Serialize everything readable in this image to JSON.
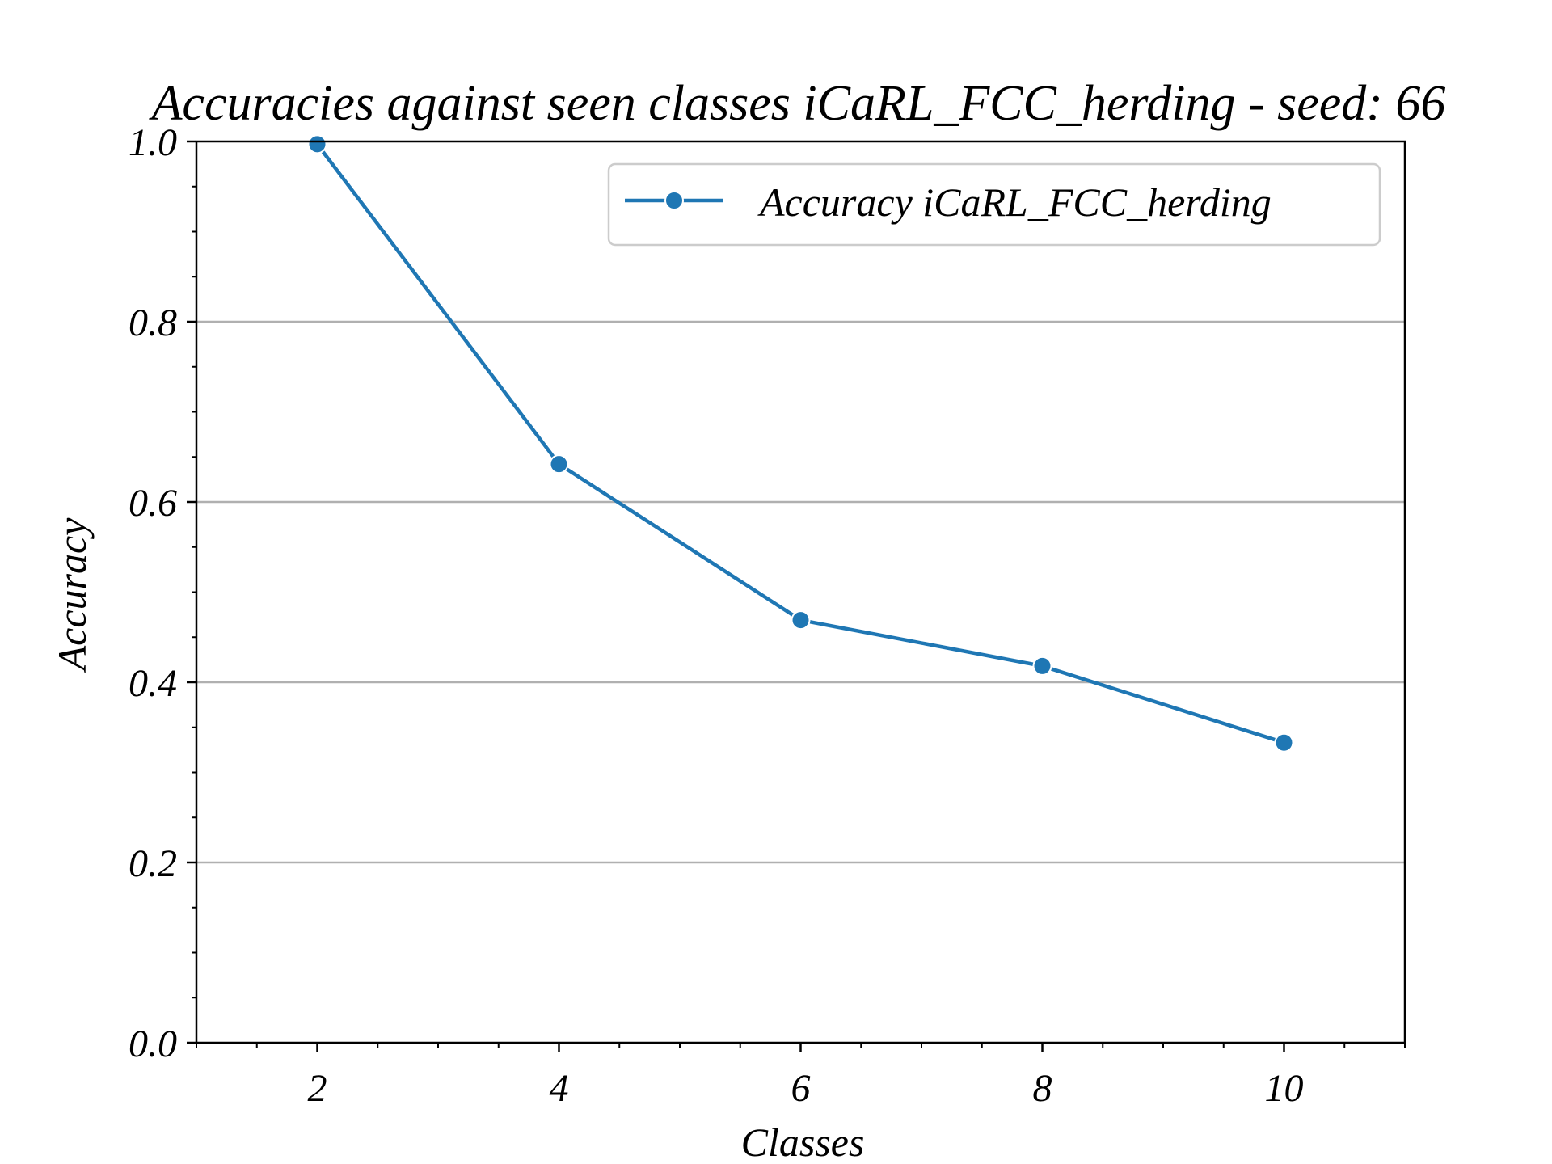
{
  "chart_data": {
    "type": "line",
    "title": "Accuracies against seen classes iCaRL_FCC_herding - seed: 66",
    "xlabel": "Classes",
    "ylabel": "Accuracy",
    "xlim": [
      1,
      11
    ],
    "ylim": [
      0.0,
      1.0
    ],
    "x_ticks": [
      2,
      4,
      6,
      8,
      10
    ],
    "x_tick_labels": [
      "2",
      "4",
      "6",
      "8",
      "10"
    ],
    "x_minor_step": 0.5,
    "y_ticks": [
      0.0,
      0.2,
      0.4,
      0.6,
      0.8,
      1.0
    ],
    "y_tick_labels": [
      "0.0",
      "0.2",
      "0.4",
      "0.6",
      "0.8",
      "1.0"
    ],
    "y_minor_step": 0.05,
    "grid": "horizontal",
    "legend_position": "top-right",
    "colors": {
      "series": "#1f77b4",
      "grid": "#b0b0b0",
      "axes": "#000000"
    },
    "series": [
      {
        "name": "Accuracy iCaRL_FCC_herding",
        "x": [
          2,
          4,
          6,
          8,
          10
        ],
        "y": [
          0.997,
          0.642,
          0.469,
          0.418,
          0.333
        ]
      }
    ]
  }
}
